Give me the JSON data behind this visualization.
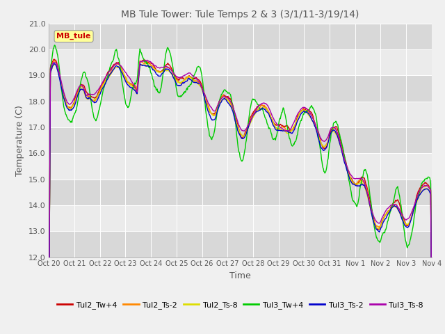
{
  "title": "MB Tule Tower: Tule Temps 2 & 3 (3/1/11-3/19/14)",
  "xlabel": "Time",
  "ylabel": "Temperature (C)",
  "ylim": [
    12.0,
    21.0
  ],
  "yticks": [
    12.0,
    13.0,
    14.0,
    15.0,
    16.0,
    17.0,
    18.0,
    19.0,
    20.0,
    21.0
  ],
  "xtick_labels": [
    "Oct 20",
    "Oct 21",
    "Oct 22",
    "Oct 23",
    "Oct 24",
    "Oct 25",
    "Oct 26",
    "Oct 27",
    "Oct 28",
    "Oct 29",
    "Oct 30",
    "Oct 31",
    "Nov 1",
    "Nov 2",
    "Nov 3",
    "Nov 4"
  ],
  "series_colors": [
    "#cc0000",
    "#ff8800",
    "#dddd00",
    "#00cc00",
    "#0000cc",
    "#aa00aa"
  ],
  "series_labels": [
    "Tul2_Tw+4",
    "Tul2_Ts-2",
    "Tul2_Ts-8",
    "Tul3_Tw+4",
    "Tul3_Ts-2",
    "Tul3_Ts-8"
  ],
  "annotation_text": "MB_tule",
  "annotation_fg": "#cc0000",
  "annotation_bg": "#ffff99",
  "bg_light": "#ebebeb",
  "bg_dark": "#d8d8d8",
  "fig_bg": "#f0f0f0",
  "linewidth": 1.0,
  "n_points": 800,
  "title_color": "#555555",
  "tick_label_color": "#555555",
  "axis_label_color": "#555555"
}
